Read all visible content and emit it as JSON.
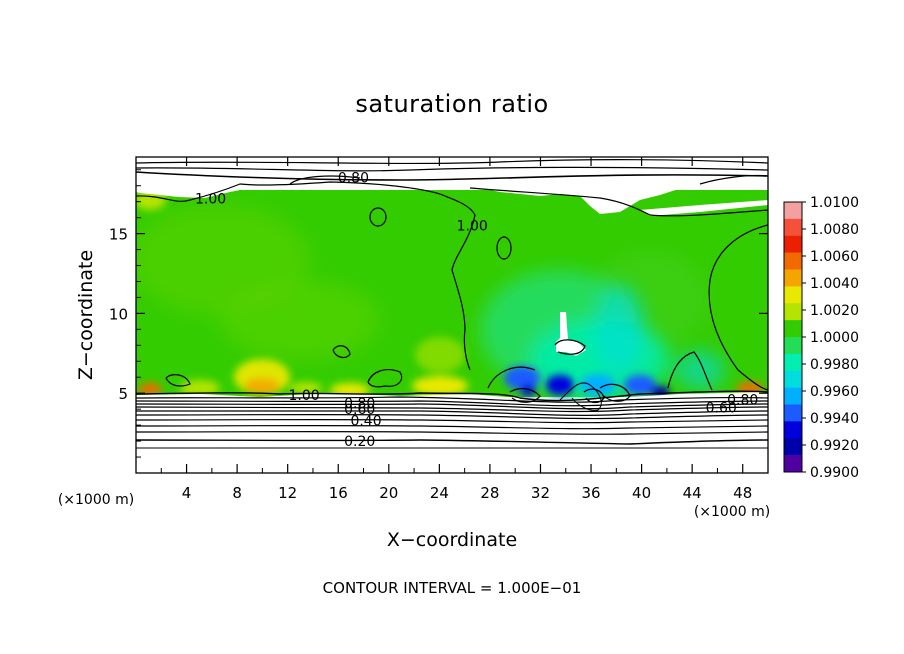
{
  "chart_data": {
    "type": "heatmap",
    "title": "saturation ratio",
    "xlabel": "X−coordinate",
    "ylabel": "Z−coordinate",
    "x_unit_label": "(×1000 m)",
    "y_unit_label": "(×1000 m)",
    "footer": "CONTOUR INTERVAL = 1.000E−01",
    "xlim": [
      0,
      50
    ],
    "ylim": [
      0,
      19.8
    ],
    "x_ticks": [
      4,
      8,
      12,
      16,
      20,
      24,
      28,
      32,
      36,
      40,
      44,
      48
    ],
    "y_ticks": [
      5,
      10,
      15
    ],
    "colorbar": {
      "levels": [
        "1.0100",
        "1.0080",
        "1.0060",
        "1.0040",
        "1.0020",
        "1.0000",
        "0.9980",
        "0.9960",
        "0.9940",
        "0.9920",
        "0.9900"
      ],
      "colors": [
        "#f2a0a0",
        "#f5503a",
        "#ea2000",
        "#f06a00",
        "#f5a500",
        "#e8e800",
        "#b4e400",
        "#33cc00",
        "#22dd55",
        "#00eeb0",
        "#00dddd",
        "#00b0ff",
        "#1a5cff",
        "#0000dd",
        "#0000aa",
        "#5000a0"
      ]
    },
    "contour_labels": [
      {
        "text": "0.80",
        "x": 17.2,
        "z": 18.5
      },
      {
        "text": "1.00",
        "x": 5.9,
        "z": 17.2
      },
      {
        "text": "1.00",
        "x": 26.6,
        "z": 15.5
      },
      {
        "text": "1.00",
        "x": 13.3,
        "z": 4.9
      },
      {
        "text": "0.80",
        "x": 17.7,
        "z": 4.4
      },
      {
        "text": "0.60",
        "x": 17.7,
        "z": 4.0
      },
      {
        "text": "0.40",
        "x": 18.2,
        "z": 3.3
      },
      {
        "text": "0.20",
        "x": 17.7,
        "z": 2.0
      },
      {
        "text": "0.80",
        "x": 48.0,
        "z": 4.6
      },
      {
        "text": "0.60",
        "x": 46.3,
        "z": 4.1
      }
    ],
    "grid": false,
    "legend_position": "right"
  }
}
